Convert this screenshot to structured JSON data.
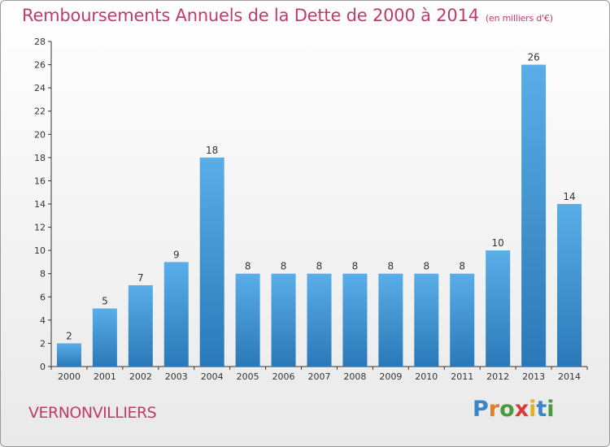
{
  "chart_data": {
    "type": "bar",
    "title": "Remboursements Annuels de la Dette de 2000 à 2014",
    "subtitle": "(en milliers d'€)",
    "categories": [
      "2000",
      "2001",
      "2002",
      "2003",
      "2004",
      "2005",
      "2006",
      "2007",
      "2008",
      "2009",
      "2010",
      "2011",
      "2012",
      "2013",
      "2014"
    ],
    "values": [
      2,
      5,
      7,
      9,
      18,
      8,
      8,
      8,
      8,
      8,
      8,
      8,
      10,
      26,
      14
    ],
    "ylim": [
      0,
      28
    ],
    "yticks": [
      0,
      2,
      4,
      6,
      8,
      10,
      12,
      14,
      16,
      18,
      20,
      22,
      24,
      26,
      28
    ],
    "xlabel": "",
    "ylabel": "",
    "grid": false,
    "legend": "none",
    "bar_color": "#3f95d8"
  },
  "location": "VERNONVILLIERS",
  "logo": {
    "text": "Proxiti",
    "letter_colors": [
      "#3a86c8",
      "#e27d2a",
      "#4b9b3c",
      "#d63a3a",
      "#e2b021",
      "#3a86c8",
      "#4b9b3c"
    ]
  },
  "colors": {
    "title": "#c03a6c",
    "axis": "#333333"
  }
}
